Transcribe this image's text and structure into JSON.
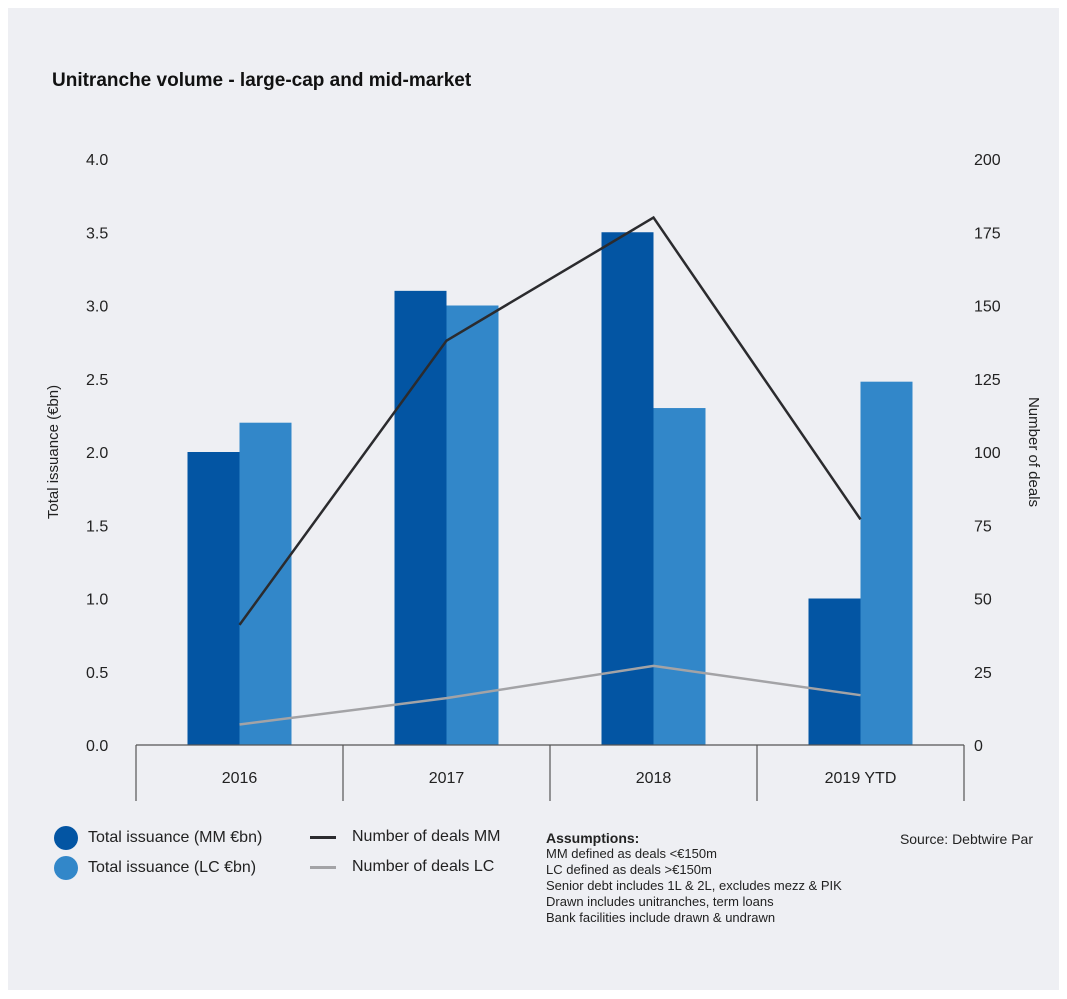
{
  "title": "Unitranche volume - large-cap and mid-market",
  "chart_data": {
    "type": "bar",
    "categories": [
      "2016",
      "2017",
      "2018",
      "2019 YTD"
    ],
    "series": [
      {
        "name": "Total issuance (MM €bn)",
        "kind": "bar",
        "axis": "left",
        "color": "#0355a3",
        "values": [
          2.0,
          3.1,
          3.5,
          1.0
        ]
      },
      {
        "name": "Total issuance (LC €bn)",
        "kind": "bar",
        "axis": "left",
        "color": "#3287c9",
        "values": [
          2.2,
          3.0,
          2.3,
          2.48
        ]
      },
      {
        "name": "Number of deals MM",
        "kind": "line",
        "axis": "right",
        "color": "#2b2b2e",
        "values": [
          41,
          138,
          180,
          77
        ]
      },
      {
        "name": "Number of deals LC",
        "kind": "line",
        "axis": "right",
        "color": "#a3a3a6",
        "values": [
          7,
          16,
          27,
          17
        ]
      }
    ],
    "ylabel": "Total issuance (€bn)",
    "y2label": "Number of deals",
    "ylim": [
      0,
      4.0
    ],
    "y2lim": [
      0,
      200
    ],
    "yticks": [
      "0.0",
      "0.5",
      "1.0",
      "1.5",
      "2.0",
      "2.5",
      "3.0",
      "3.5",
      "4.0"
    ],
    "y2ticks": [
      "0",
      "25",
      "50",
      "75",
      "100",
      "125",
      "150",
      "175",
      "200"
    ],
    "grid": false,
    "legend_position": "bottom"
  },
  "assumptions": {
    "heading": "Assumptions:",
    "lines": [
      "MM defined as deals <€150m",
      "LC defined as deals >€150m",
      "Senior debt includes 1L & 2L, excludes mezz & PIK",
      "Drawn includes unitranches, term loans",
      "Bank facilities include drawn & undrawn"
    ]
  },
  "source": "Source: Debtwire Par"
}
